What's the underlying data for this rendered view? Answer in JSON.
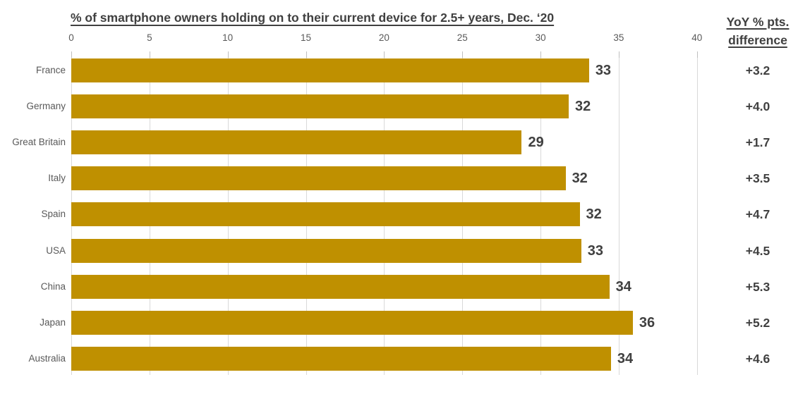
{
  "page": {
    "background": "#FFFFFF"
  },
  "chart_data": {
    "type": "bar",
    "orientation": "horizontal",
    "title": "% of smartphone owners holding on to their current device for 2.5+ years, Dec. ‘20",
    "categories": [
      "France",
      "Germany",
      "Great Britain",
      "Italy",
      "Spain",
      "USA",
      "China",
      "Japan",
      "Australia"
    ],
    "values": [
      33,
      32,
      29,
      32,
      32,
      33,
      34,
      36,
      34
    ],
    "bar_lengths_precise": [
      33.1,
      31.8,
      28.8,
      31.6,
      32.5,
      32.6,
      34.4,
      35.9,
      34.5
    ],
    "x_ticks": [
      0,
      5,
      10,
      15,
      20,
      25,
      30,
      35,
      40
    ],
    "xlim": [
      0,
      40
    ],
    "grid": true,
    "legend": "none",
    "value_labels_shown": true,
    "yoy_column": {
      "header": [
        "YoY % pts.",
        "difference"
      ],
      "values": [
        "+3.2",
        "+4.0",
        "+1.7",
        "+3.5",
        "+4.7",
        "+4.5",
        "+5.3",
        "+5.2",
        "+4.6"
      ]
    },
    "colors": {
      "bar": "#BF9000",
      "title_text": "#404040",
      "value_text": "#404040",
      "axis_text": "#595959",
      "category_text": "#595959",
      "gridline": "#D9D9D9",
      "tick_mark": "#BFBFBF"
    }
  }
}
